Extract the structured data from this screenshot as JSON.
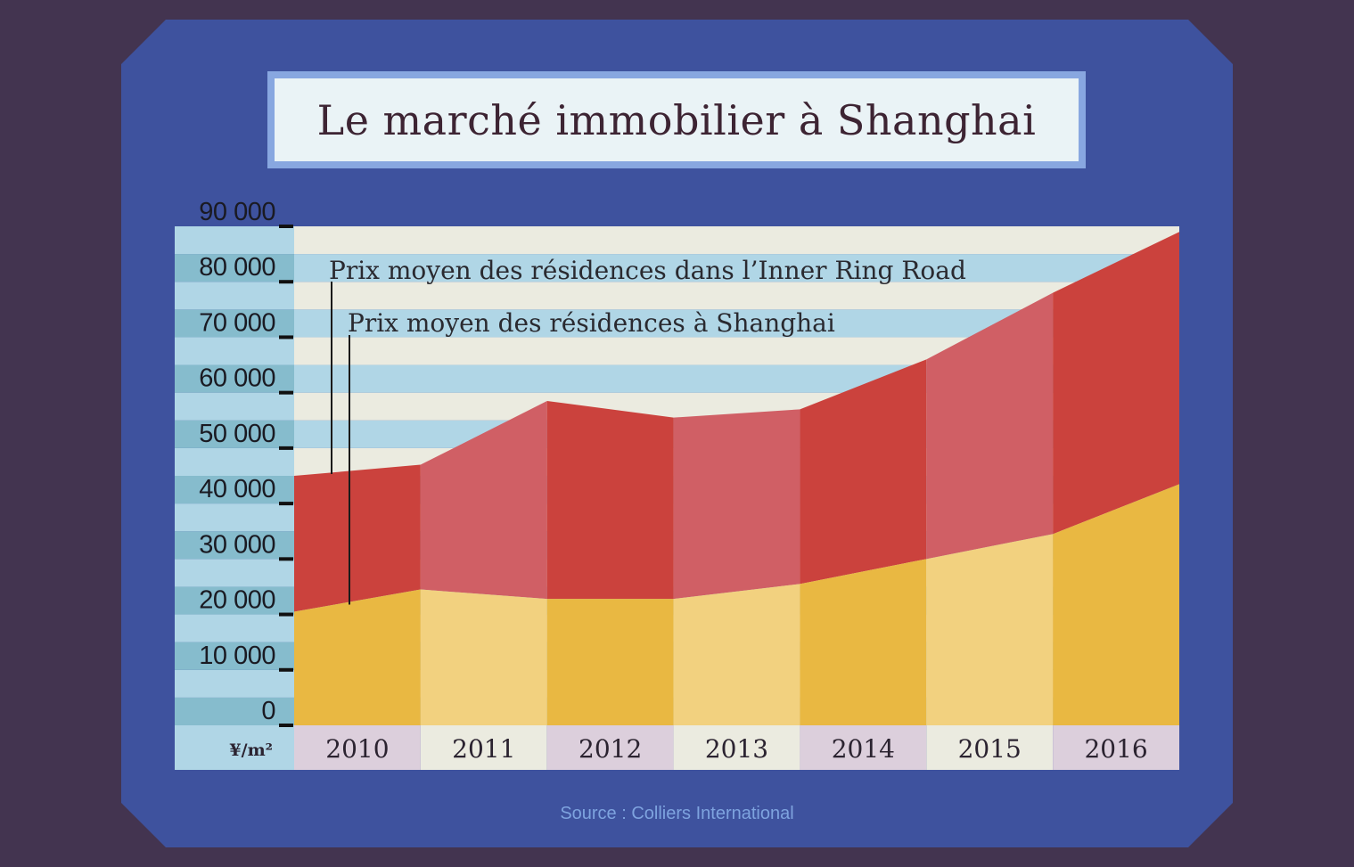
{
  "title": "Le marché immobilier à Shanghai",
  "source": "Source : Colliers International",
  "colors": {
    "background": "#433450",
    "panel": "#3e529e",
    "stripe_blue": "#b0d6e6",
    "stripe_cream": "#ebebe0",
    "inner_ring_dark": "#cb423d",
    "inner_ring_light": "#d05f65",
    "shanghai_dark": "#e9b842",
    "shanghai_light": "#f2d17f"
  },
  "chart_data": {
    "type": "area",
    "title": "Le marché immobilier à Shanghai",
    "unit_label": "¥/m²",
    "x": [
      "2010",
      "2011",
      "2012",
      "2013",
      "2014",
      "2015",
      "2016"
    ],
    "ylim": [
      0,
      90000
    ],
    "ytick_labels": [
      "0",
      "10 000",
      "20 000",
      "30 000",
      "40 000",
      "50 000",
      "60 000",
      "70 000",
      "80 000",
      "90 000"
    ],
    "ytick_values": [
      0,
      10000,
      20000,
      30000,
      40000,
      50000,
      60000,
      70000,
      80000,
      90000
    ],
    "series": [
      {
        "name": "Prix moyen des résidences dans l’Inner Ring Road",
        "points": [
          {
            "x": "2010",
            "start": 45000,
            "end": 47000
          },
          {
            "x": "2011",
            "start": 47000,
            "end": 58500
          },
          {
            "x": "2012",
            "start": 58500,
            "end": 55500
          },
          {
            "x": "2013",
            "start": 55500,
            "end": 57000
          },
          {
            "x": "2014",
            "start": 57000,
            "end": 66000
          },
          {
            "x": "2015",
            "start": 66000,
            "end": 78000
          },
          {
            "x": "2016",
            "start": 78000,
            "end": 89000
          }
        ]
      },
      {
        "name": "Prix moyen des résidences à Shanghai",
        "points": [
          {
            "x": "2010",
            "start": 20500,
            "end": 24500
          },
          {
            "x": "2011",
            "start": 24500,
            "end": 22800
          },
          {
            "x": "2012",
            "start": 22800,
            "end": 22800
          },
          {
            "x": "2013",
            "start": 22800,
            "end": 25500
          },
          {
            "x": "2014",
            "start": 25500,
            "end": 30000
          },
          {
            "x": "2015",
            "start": 30000,
            "end": 34500
          },
          {
            "x": "2016",
            "start": 34500,
            "end": 43500
          }
        ]
      }
    ],
    "grid": "horizontal stripes",
    "legend": "annotations top-left"
  }
}
